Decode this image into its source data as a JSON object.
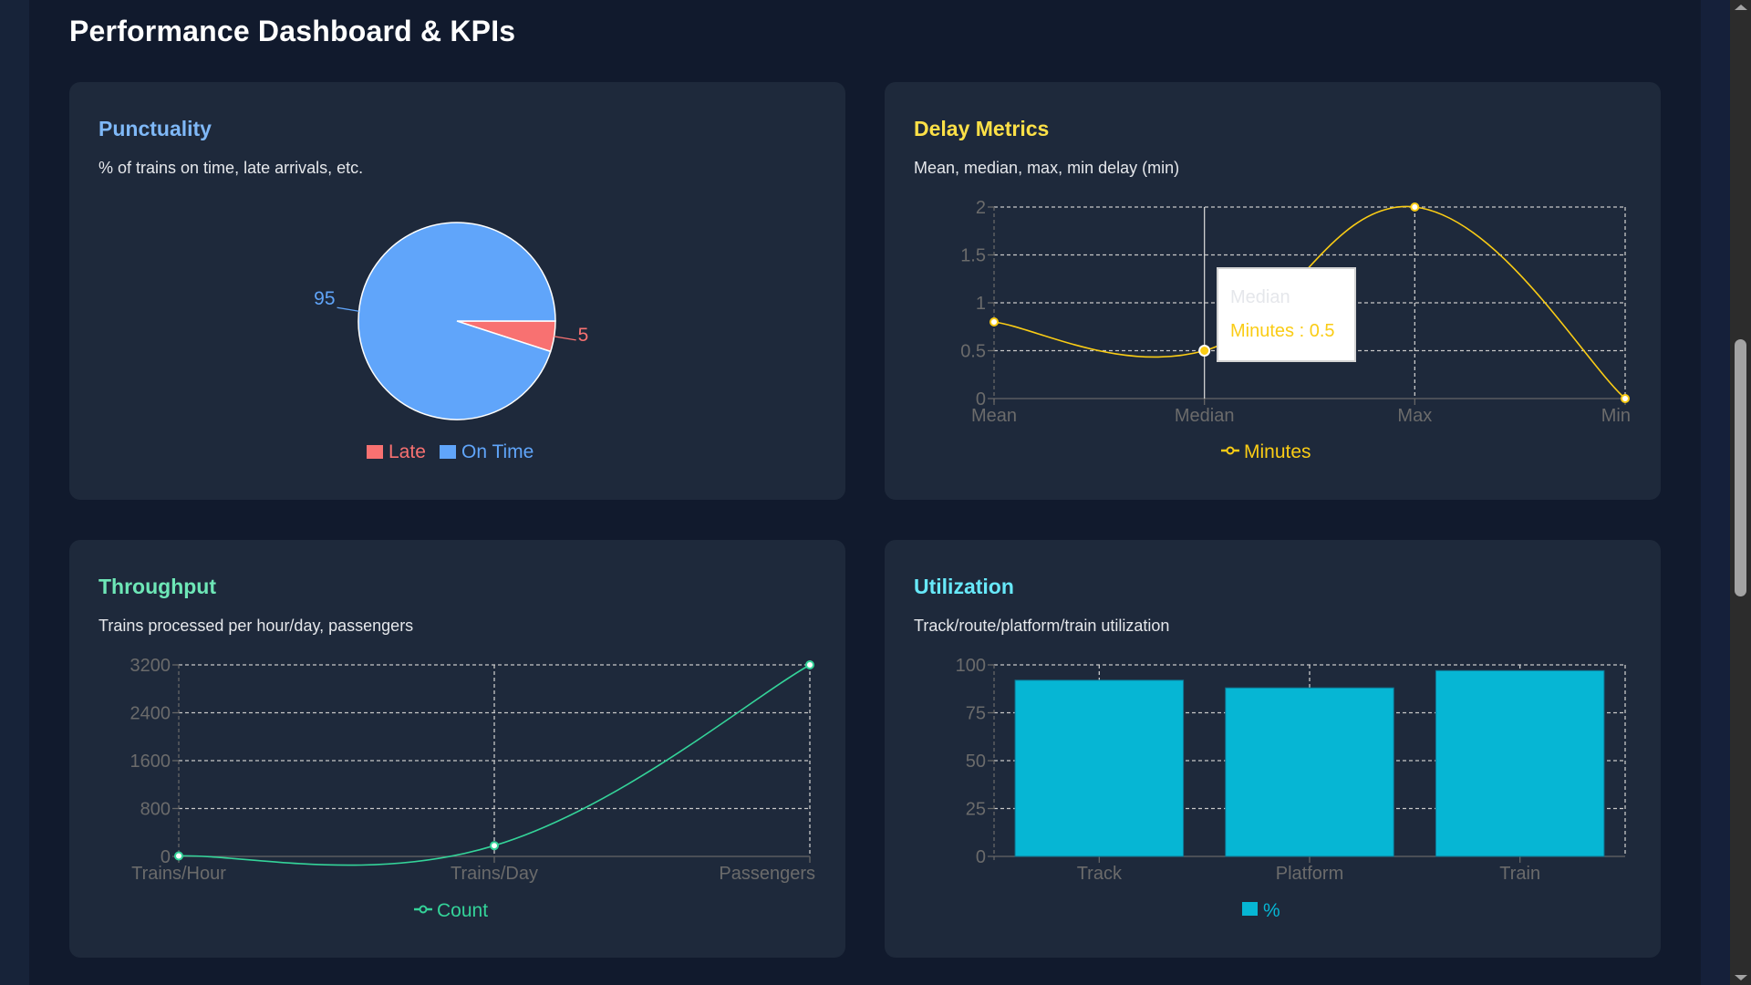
{
  "page": {
    "title": "Performance Dashboard & KPIs"
  },
  "cards": {
    "punctuality": {
      "title": "Punctuality",
      "subtitle": "% of trains on time, late arrivals, etc.",
      "title_color": "#7fb8f7"
    },
    "delay": {
      "title": "Delay Metrics",
      "subtitle": "Mean, median, max, min delay (min)",
      "title_color": "#fde047",
      "tooltip": {
        "title": "Median",
        "body": "Minutes : 0.5"
      }
    },
    "throughput": {
      "title": "Throughput",
      "subtitle": "Trains processed per hour/day, passengers",
      "title_color": "#6ee7b7"
    },
    "utilization": {
      "title": "Utilization",
      "subtitle": "Track/route/platform/train utilization",
      "title_color": "#67e8f9"
    }
  },
  "chart_data": [
    {
      "id": "punctuality",
      "type": "pie",
      "categories": [
        "Late",
        "On Time"
      ],
      "values": [
        5,
        95
      ],
      "colors": [
        "#f87171",
        "#60a5fa"
      ],
      "data_labels": [
        "5",
        "95"
      ],
      "legend": [
        "Late",
        "On Time"
      ],
      "legend_position": "bottom"
    },
    {
      "id": "delay",
      "type": "line",
      "categories": [
        "Mean",
        "Median",
        "Max",
        "Min"
      ],
      "series": [
        {
          "name": "Minutes",
          "values": [
            0.8,
            0.5,
            2,
            0
          ],
          "color": "#facc15"
        }
      ],
      "yticks": [
        "0",
        "0.5",
        "1",
        "1.5",
        "2"
      ],
      "ylim": [
        0,
        2
      ],
      "grid": true,
      "legend_position": "bottom",
      "active_point": "Median"
    },
    {
      "id": "throughput",
      "type": "line",
      "categories": [
        "Trains/Hour",
        "Trains/Day",
        "Passengers"
      ],
      "series": [
        {
          "name": "Count",
          "values": [
            8,
            180,
            3200
          ],
          "color": "#34d399"
        }
      ],
      "yticks": [
        "0",
        "800",
        "1600",
        "2400",
        "3200"
      ],
      "ylim": [
        0,
        3200
      ],
      "grid": true,
      "legend_position": "bottom"
    },
    {
      "id": "utilization",
      "type": "bar",
      "categories": [
        "Track",
        "Platform",
        "Train"
      ],
      "series": [
        {
          "name": "%",
          "values": [
            92,
            88,
            97
          ],
          "color": "#06b6d4"
        }
      ],
      "yticks": [
        "0",
        "25",
        "50",
        "75",
        "100"
      ],
      "ylim": [
        0,
        100
      ],
      "grid": true,
      "legend_position": "bottom"
    }
  ]
}
